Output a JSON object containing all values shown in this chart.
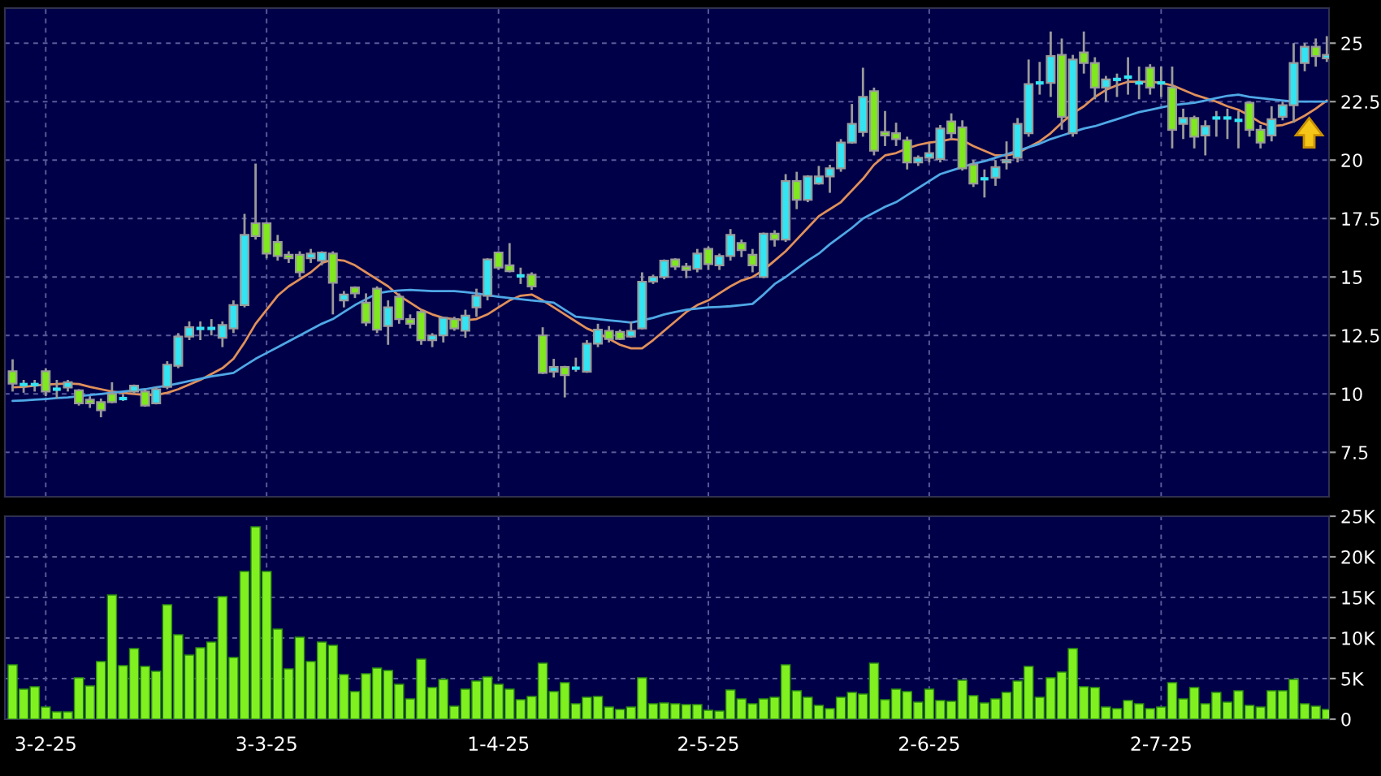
{
  "chart_data": [
    {
      "type": "candlestick",
      "ohlc": [
        [
          10.97,
          11.48,
          10.1,
          10.44
        ],
        [
          10.4,
          10.6,
          10.05,
          10.4
        ],
        [
          10.4,
          10.6,
          10.1,
          10.4
        ],
        [
          10.97,
          11.1,
          9.9,
          10.1
        ],
        [
          10.2,
          10.6,
          9.8,
          10.2
        ],
        [
          10.27,
          10.6,
          10.1,
          10.5
        ],
        [
          10.15,
          10.2,
          9.5,
          9.6
        ],
        [
          9.75,
          9.9,
          9.4,
          9.6
        ],
        [
          9.65,
          9.8,
          9.0,
          9.3
        ],
        [
          10.0,
          10.5,
          9.6,
          9.65
        ],
        [
          9.8,
          10.0,
          9.7,
          9.8
        ],
        [
          10.1,
          10.4,
          10.0,
          10.35
        ],
        [
          10.1,
          10.2,
          9.45,
          9.5
        ],
        [
          9.6,
          10.3,
          9.55,
          10.2
        ],
        [
          10.3,
          11.4,
          10.2,
          11.25
        ],
        [
          11.2,
          12.6,
          11.1,
          12.45
        ],
        [
          12.45,
          13.1,
          12.3,
          12.85
        ],
        [
          12.8,
          13.1,
          12.3,
          12.8
        ],
        [
          12.8,
          13.2,
          12.5,
          12.8
        ],
        [
          12.4,
          13.1,
          12.0,
          12.95
        ],
        [
          12.8,
          14.0,
          12.6,
          13.8
        ],
        [
          13.8,
          17.7,
          13.7,
          16.8
        ],
        [
          17.3,
          19.85,
          16.6,
          16.75
        ],
        [
          17.3,
          17.35,
          15.8,
          16.0
        ],
        [
          16.5,
          16.8,
          15.7,
          15.9
        ],
        [
          15.95,
          16.1,
          15.6,
          15.8
        ],
        [
          15.95,
          16.1,
          15.0,
          15.2
        ],
        [
          15.8,
          16.2,
          15.6,
          16.0
        ],
        [
          15.7,
          16.1,
          15.5,
          16.05
        ],
        [
          16.0,
          16.1,
          13.4,
          14.75
        ],
        [
          14.0,
          14.4,
          13.7,
          14.25
        ],
        [
          14.55,
          14.6,
          14.1,
          14.3
        ],
        [
          13.9,
          14.3,
          12.9,
          13.05
        ],
        [
          14.5,
          14.6,
          12.6,
          12.75
        ],
        [
          12.9,
          14.0,
          12.1,
          13.7
        ],
        [
          14.15,
          14.3,
          13.0,
          13.2
        ],
        [
          13.2,
          13.4,
          12.8,
          13.0
        ],
        [
          13.5,
          13.6,
          12.1,
          12.3
        ],
        [
          12.3,
          12.6,
          12.0,
          12.5
        ],
        [
          12.5,
          13.3,
          12.2,
          13.25
        ],
        [
          13.2,
          13.3,
          12.7,
          12.8
        ],
        [
          12.7,
          13.6,
          12.4,
          13.35
        ],
        [
          13.7,
          14.5,
          13.3,
          14.2
        ],
        [
          14.2,
          15.8,
          14.0,
          15.75
        ],
        [
          16.05,
          16.1,
          15.3,
          15.4
        ],
        [
          15.5,
          16.45,
          15.2,
          15.25
        ],
        [
          15.05,
          15.4,
          14.7,
          15.05
        ],
        [
          15.1,
          15.2,
          14.45,
          14.6
        ],
        [
          12.5,
          12.85,
          10.85,
          10.9
        ],
        [
          10.95,
          11.5,
          10.7,
          11.15
        ],
        [
          11.15,
          11.2,
          9.85,
          10.8
        ],
        [
          11.1,
          11.55,
          10.95,
          11.1
        ],
        [
          10.95,
          12.3,
          10.9,
          12.15
        ],
        [
          12.15,
          13.0,
          12.0,
          12.75
        ],
        [
          12.7,
          12.9,
          12.2,
          12.35
        ],
        [
          12.65,
          12.75,
          12.3,
          12.35
        ],
        [
          12.45,
          13.1,
          12.4,
          12.7
        ],
        [
          12.8,
          15.2,
          12.75,
          14.8
        ],
        [
          14.8,
          15.1,
          14.7,
          15.0
        ],
        [
          15.0,
          15.75,
          14.9,
          15.7
        ],
        [
          15.75,
          15.8,
          15.3,
          15.45
        ],
        [
          15.45,
          15.6,
          14.95,
          15.3
        ],
        [
          15.35,
          16.2,
          15.2,
          16.0
        ],
        [
          16.2,
          16.3,
          15.3,
          15.55
        ],
        [
          15.5,
          16.0,
          15.3,
          15.9
        ],
        [
          15.9,
          17.05,
          15.7,
          16.8
        ],
        [
          16.45,
          16.6,
          15.85,
          16.15
        ],
        [
          15.95,
          16.2,
          15.2,
          15.5
        ],
        [
          15.0,
          16.9,
          14.95,
          16.85
        ],
        [
          16.85,
          17.0,
          16.3,
          16.6
        ],
        [
          16.6,
          19.4,
          16.5,
          19.1
        ],
        [
          19.1,
          19.5,
          17.9,
          18.3
        ],
        [
          18.3,
          19.35,
          18.2,
          19.3
        ],
        [
          19.0,
          19.75,
          18.95,
          19.3
        ],
        [
          19.3,
          19.8,
          18.6,
          19.65
        ],
        [
          19.65,
          20.9,
          19.5,
          20.75
        ],
        [
          20.75,
          22.4,
          20.7,
          21.55
        ],
        [
          21.2,
          23.95,
          21.0,
          22.7
        ],
        [
          22.95,
          23.1,
          20.2,
          20.4
        ],
        [
          21.2,
          22.1,
          20.6,
          21.05
        ],
        [
          21.15,
          21.6,
          20.6,
          20.9
        ],
        [
          20.85,
          21.0,
          19.6,
          19.9
        ],
        [
          19.9,
          20.2,
          19.75,
          20.1
        ],
        [
          20.1,
          20.7,
          19.9,
          20.3
        ],
        [
          20.05,
          21.5,
          19.9,
          21.35
        ],
        [
          21.65,
          22.0,
          20.9,
          21.15
        ],
        [
          21.4,
          21.7,
          19.55,
          19.65
        ],
        [
          19.8,
          20.0,
          18.85,
          19.0
        ],
        [
          19.2,
          19.6,
          18.4,
          19.2
        ],
        [
          19.25,
          20.0,
          18.9,
          19.7
        ],
        [
          19.9,
          20.8,
          19.6,
          20.0
        ],
        [
          20.1,
          21.8,
          19.9,
          21.55
        ],
        [
          21.15,
          24.3,
          21.0,
          23.25
        ],
        [
          23.3,
          24.2,
          22.8,
          23.3
        ],
        [
          23.3,
          25.5,
          22.7,
          24.45
        ],
        [
          24.5,
          25.2,
          21.3,
          21.85
        ],
        [
          21.15,
          24.5,
          21.0,
          24.3
        ],
        [
          24.6,
          25.5,
          23.7,
          24.15
        ],
        [
          24.15,
          24.4,
          22.6,
          23.1
        ],
        [
          23.1,
          23.6,
          22.5,
          23.45
        ],
        [
          23.45,
          23.7,
          22.7,
          23.45
        ],
        [
          23.55,
          24.4,
          22.8,
          23.55
        ],
        [
          23.3,
          24.0,
          22.6,
          23.3
        ],
        [
          23.95,
          24.1,
          22.8,
          23.1
        ],
        [
          23.3,
          24.0,
          22.7,
          23.3
        ],
        [
          23.1,
          24.0,
          20.5,
          21.3
        ],
        [
          21.55,
          22.2,
          20.9,
          21.8
        ],
        [
          21.8,
          21.9,
          20.5,
          21.0
        ],
        [
          21.05,
          21.7,
          20.2,
          21.45
        ],
        [
          21.8,
          22.1,
          21.0,
          21.8
        ],
        [
          21.8,
          22.2,
          20.9,
          21.8
        ],
        [
          21.7,
          22.1,
          20.5,
          21.7
        ],
        [
          22.45,
          22.5,
          21.0,
          21.3
        ],
        [
          21.3,
          21.5,
          20.5,
          20.75
        ],
        [
          21.05,
          22.3,
          20.8,
          21.75
        ],
        [
          21.85,
          22.5,
          21.7,
          22.35
        ],
        [
          22.35,
          25.0,
          21.6,
          24.15
        ],
        [
          24.15,
          25.0,
          23.8,
          24.85
        ],
        [
          24.85,
          25.2,
          24.0,
          24.45
        ],
        [
          24.35,
          25.3,
          24.2,
          24.5
        ]
      ],
      "colors": [
        "#7fe81e",
        "#33e4f2",
        "#33e4f2",
        "#7fe81e",
        "#33e4f2",
        "#33e4f2",
        "#7fe81e",
        "#7fe81e",
        "#7fe81e",
        "#7fe81e",
        "#33e4f2",
        "#33e4f2",
        "#7fe81e",
        "#33e4f2",
        "#33e4f2",
        "#33e4f2",
        "#33e4f2",
        "#33e4f2",
        "#33e4f2",
        "#33e4f2",
        "#33e4f2",
        "#33e4f2",
        "#7fe81e",
        "#7fe81e",
        "#7fe81e",
        "#7fe81e",
        "#7fe81e",
        "#33e4f2",
        "#33e4f2",
        "#7fe81e",
        "#33e4f2",
        "#7fe81e",
        "#7fe81e",
        "#7fe81e",
        "#33e4f2",
        "#7fe81e",
        "#7fe81e",
        "#7fe81e",
        "#33e4f2",
        "#33e4f2",
        "#7fe81e",
        "#33e4f2",
        "#33e4f2",
        "#33e4f2",
        "#7fe81e",
        "#7fe81e",
        "#33e4f2",
        "#7fe81e",
        "#7fe81e",
        "#33e4f2",
        "#7fe81e",
        "#33e4f2",
        "#33e4f2",
        "#33e4f2",
        "#7fe81e",
        "#7fe81e",
        "#33e4f2",
        "#33e4f2",
        "#33e4f2",
        "#33e4f2",
        "#7fe81e",
        "#7fe81e",
        "#33e4f2",
        "#7fe81e",
        "#33e4f2",
        "#33e4f2",
        "#7fe81e",
        "#7fe81e",
        "#33e4f2",
        "#7fe81e",
        "#33e4f2",
        "#7fe81e",
        "#33e4f2",
        "#33e4f2",
        "#33e4f2",
        "#33e4f2",
        "#33e4f2",
        "#33e4f2",
        "#7fe81e",
        "#7fe81e",
        "#7fe81e",
        "#7fe81e",
        "#33e4f2",
        "#33e4f2",
        "#33e4f2",
        "#7fe81e",
        "#7fe81e",
        "#7fe81e",
        "#33e4f2",
        "#33e4f2",
        "#33e4f2",
        "#33e4f2",
        "#33e4f2",
        "#33e4f2",
        "#33e4f2",
        "#7fe81e",
        "#33e4f2",
        "#7fe81e",
        "#7fe81e",
        "#33e4f2",
        "#33e4f2",
        "#33e4f2",
        "#33e4f2",
        "#7fe81e",
        "#33e4f2",
        "#7fe81e",
        "#33e4f2",
        "#7fe81e",
        "#33e4f2",
        "#33e4f2",
        "#33e4f2",
        "#33e4f2",
        "#7fe81e",
        "#7fe81e",
        "#33e4f2",
        "#33e4f2",
        "#33e4f2",
        "#33e4f2",
        "#7fe81e",
        "#33e4f2"
      ],
      "series": [
        {
          "type": "line",
          "color": "#e0905a",
          "values": [
            10.28,
            10.3,
            10.35,
            10.4,
            10.42,
            10.45,
            10.42,
            10.3,
            10.2,
            10.1,
            10.05,
            10.0,
            9.95,
            9.95,
            10.05,
            10.2,
            10.4,
            10.6,
            10.85,
            11.1,
            11.5,
            12.2,
            13.0,
            13.6,
            14.2,
            14.6,
            14.9,
            15.2,
            15.6,
            15.75,
            15.7,
            15.5,
            15.2,
            14.9,
            14.6,
            14.2,
            13.9,
            13.6,
            13.4,
            13.25,
            13.2,
            13.15,
            13.2,
            13.4,
            13.7,
            14.0,
            14.2,
            14.25,
            14.0,
            13.7,
            13.4,
            13.1,
            12.8,
            12.6,
            12.35,
            12.1,
            11.95,
            11.95,
            12.3,
            12.7,
            13.1,
            13.5,
            13.8,
            14.0,
            14.3,
            14.6,
            14.85,
            15.0,
            15.3,
            15.7,
            16.1,
            16.6,
            17.1,
            17.6,
            17.9,
            18.2,
            18.7,
            19.2,
            19.8,
            20.2,
            20.3,
            20.5,
            20.65,
            20.75,
            20.8,
            20.9,
            20.85,
            20.6,
            20.4,
            20.2,
            20.2,
            20.3,
            20.55,
            20.8,
            21.15,
            21.6,
            22.0,
            22.3,
            22.7,
            23.0,
            23.2,
            23.35,
            23.35,
            23.35,
            23.3,
            23.2,
            23.0,
            22.8,
            22.65,
            22.5,
            22.3,
            22.15,
            21.9,
            21.6,
            21.45,
            21.5,
            21.65,
            21.9,
            22.2,
            22.55
          ]
        },
        {
          "type": "line",
          "color": "#4fa8e6",
          "values": [
            9.7,
            9.72,
            9.75,
            9.78,
            9.82,
            9.85,
            9.9,
            9.95,
            10.0,
            10.05,
            10.1,
            10.15,
            10.2,
            10.28,
            10.35,
            10.45,
            10.55,
            10.65,
            10.75,
            10.82,
            10.9,
            11.2,
            11.5,
            11.75,
            12.0,
            12.25,
            12.5,
            12.75,
            13.0,
            13.2,
            13.5,
            13.8,
            14.05,
            14.3,
            14.38,
            14.42,
            14.45,
            14.42,
            14.4,
            14.4,
            14.4,
            14.35,
            14.3,
            14.22,
            14.15,
            14.1,
            14.05,
            14.0,
            13.95,
            13.9,
            13.6,
            13.3,
            13.25,
            13.2,
            13.15,
            13.1,
            13.05,
            13.15,
            13.25,
            13.4,
            13.5,
            13.6,
            13.65,
            13.7,
            13.72,
            13.75,
            13.8,
            13.85,
            14.25,
            14.7,
            15.0,
            15.35,
            15.7,
            16.0,
            16.4,
            16.75,
            17.1,
            17.5,
            17.75,
            18.0,
            18.2,
            18.5,
            18.8,
            19.1,
            19.4,
            19.55,
            19.7,
            19.85,
            19.95,
            20.1,
            20.25,
            20.4,
            20.55,
            20.7,
            20.9,
            21.05,
            21.2,
            21.35,
            21.45,
            21.6,
            21.75,
            21.9,
            22.05,
            22.15,
            22.25,
            22.35,
            22.4,
            22.45,
            22.55,
            22.65,
            22.75,
            22.8,
            22.7,
            22.65,
            22.6,
            22.55,
            22.5,
            22.5,
            22.5,
            22.5
          ]
        }
      ],
      "ylim": [
        5.6,
        26.5
      ],
      "yticks": [
        7.5,
        10,
        12.5,
        15,
        17.5,
        20,
        22.5,
        25
      ],
      "grid": true,
      "tick_labels": "y"
    },
    {
      "type": "bar",
      "categories": [
        null,
        null,
        null,
        "3-2-25",
        null,
        null,
        null,
        null,
        null,
        null,
        null,
        null,
        null,
        null,
        null,
        null,
        null,
        null,
        null,
        null,
        null,
        null,
        null,
        "3-3-25",
        null,
        null,
        null,
        null,
        null,
        null,
        null,
        null,
        null,
        null,
        null,
        null,
        null,
        null,
        null,
        null,
        null,
        null,
        null,
        null,
        "1-4-25",
        null,
        null,
        null,
        null,
        null,
        null,
        null,
        null,
        null,
        null,
        null,
        null,
        null,
        null,
        null,
        null,
        null,
        null,
        "2-5-25",
        null,
        null,
        null,
        null,
        null,
        null,
        null,
        null,
        null,
        null,
        null,
        null,
        null,
        null,
        null,
        null,
        null,
        null,
        null,
        "2-6-25",
        null,
        null,
        null,
        null,
        null,
        null,
        null,
        null,
        null,
        null,
        null,
        null,
        null,
        null,
        null,
        null,
        null,
        null,
        null,
        null,
        "2-7-25",
        null,
        null,
        null,
        null,
        null,
        null,
        null,
        null,
        null,
        null,
        null,
        null,
        null,
        null,
        null
      ],
      "color": "#80f020",
      "values": [
        6700,
        3700,
        4000,
        1500,
        900,
        900,
        5100,
        4100,
        7100,
        15300,
        6600,
        8700,
        6500,
        5900,
        14100,
        10400,
        7900,
        8800,
        9500,
        15100,
        7600,
        18200,
        23700,
        18200,
        11100,
        6200,
        10100,
        7100,
        9500,
        9100,
        5500,
        3400,
        5600,
        6300,
        6000,
        4300,
        2500,
        7400,
        3900,
        4900,
        1600,
        3700,
        4700,
        5200,
        4300,
        3700,
        2400,
        2800,
        6900,
        3400,
        4500,
        1900,
        2700,
        2800,
        1500,
        1200,
        1500,
        5100,
        1900,
        2000,
        1900,
        1800,
        1800,
        1100,
        1000,
        3600,
        2500,
        1900,
        2500,
        2700,
        6700,
        3500,
        2700,
        1700,
        1300,
        2700,
        3300,
        3100,
        6900,
        2400,
        3700,
        3400,
        2100,
        3700,
        2300,
        2200,
        4800,
        2900,
        2000,
        2500,
        3300,
        4700,
        6500,
        2700,
        5100,
        5800,
        8700,
        4000,
        3900,
        1500,
        1300,
        2300,
        1900,
        1300,
        1500,
        4500,
        2500,
        3900,
        1900,
        3300,
        2100,
        3500,
        1700,
        1500,
        3500,
        3500,
        4900,
        1900,
        1600,
        1200
      ],
      "ylim": [
        0,
        25000
      ],
      "yticks": [
        0,
        {
          "value": 5000,
          "label": "5K"
        },
        {
          "value": 10000,
          "label": "10K"
        },
        {
          "value": 15000,
          "label": "15K"
        },
        {
          "value": 20000,
          "label": "20K"
        },
        {
          "value": 25000,
          "label": "25K"
        }
      ],
      "grid": true
    }
  ]
}
